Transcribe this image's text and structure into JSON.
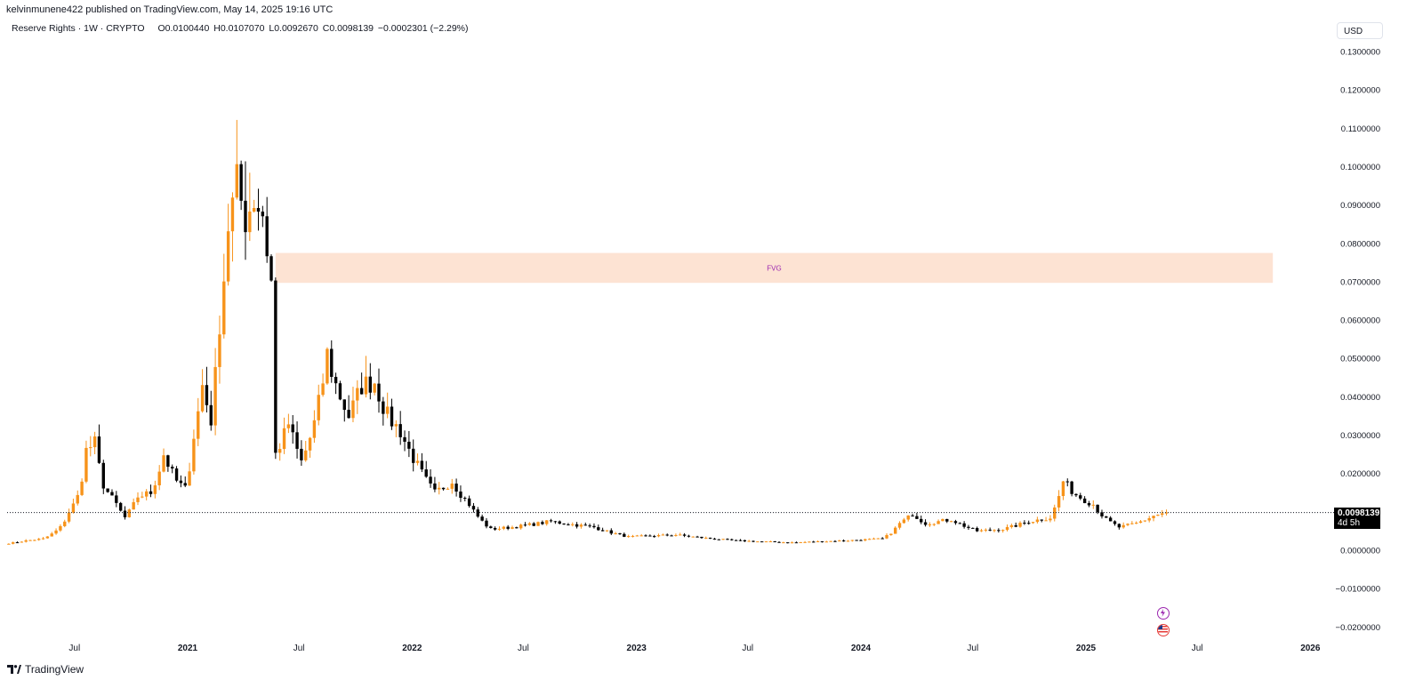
{
  "header": {
    "published": "kelvinmunene422 published on TradingView.com, May 14, 2025 19:16 UTC"
  },
  "legend": {
    "symbol": "Reserve Rights · 1W · CRYPTO",
    "open": "O0.0100440",
    "high": "H0.0107070",
    "low": "L0.0092670",
    "close": "C0.0098139",
    "change": "−0.0002301 (−2.29%)"
  },
  "currency_button": "USD",
  "last_price": {
    "value": "0.0098139",
    "countdown": "4d 5h"
  },
  "brand": "TradingView",
  "event_icons": [
    "lightning-icon",
    "us-flag-icon"
  ],
  "colors": {
    "up": "#f7931a",
    "down": "#000000",
    "fvg_fill": "#fde3d3",
    "fvg_text": "#9c27b0"
  },
  "chart_data": {
    "type": "candlestick",
    "title": "Reserve Rights · 1W · CRYPTO",
    "y_axis": {
      "ticks": [
        "0.1300000",
        "0.1200000",
        "0.1100000",
        "0.1000000",
        "0.0900000",
        "0.0800000",
        "0.0700000",
        "0.0600000",
        "0.0500000",
        "0.0400000",
        "0.0300000",
        "0.0200000",
        "0.0100000",
        "0.0000000",
        "−0.0100000",
        "−0.0200000"
      ],
      "range": [
        -0.0215,
        0.1335
      ]
    },
    "x_axis": {
      "ticks": [
        {
          "label": "Jul",
          "date": "2020-07-01",
          "bold": false
        },
        {
          "label": "2021",
          "date": "2021-01-01",
          "bold": true
        },
        {
          "label": "Jul",
          "date": "2021-07-01",
          "bold": false
        },
        {
          "label": "2022",
          "date": "2022-01-01",
          "bold": true
        },
        {
          "label": "Jul",
          "date": "2022-07-01",
          "bold": false
        },
        {
          "label": "2023",
          "date": "2023-01-01",
          "bold": true
        },
        {
          "label": "Jul",
          "date": "2023-07-01",
          "bold": false
        },
        {
          "label": "2024",
          "date": "2024-01-01",
          "bold": true
        },
        {
          "label": "Jul",
          "date": "2024-07-01",
          "bold": false
        },
        {
          "label": "2025",
          "date": "2025-01-01",
          "bold": true
        },
        {
          "label": "Jul",
          "date": "2025-07-01",
          "bold": false
        },
        {
          "label": "2026",
          "date": "2026-01-01",
          "bold": true
        }
      ]
    },
    "fvg_zone": {
      "label": "FVG",
      "from": "2021-05-24",
      "to": "2025-11-01",
      "low": 0.0697,
      "high": 0.0775
    },
    "last_close": 0.0098139,
    "keypoints": [
      {
        "date": "2020-03-16",
        "close": 0.0018
      },
      {
        "date": "2020-04-13",
        "close": 0.0025
      },
      {
        "date": "2020-05-11",
        "close": 0.003
      },
      {
        "date": "2020-06-08",
        "close": 0.006
      },
      {
        "date": "2020-06-22",
        "close": 0.01
      },
      {
        "date": "2020-07-06",
        "close": 0.014
      },
      {
        "date": "2020-07-20",
        "close": 0.026
      },
      {
        "date": "2020-08-03",
        "close": 0.028
      },
      {
        "date": "2020-08-17",
        "close": 0.017
      },
      {
        "date": "2020-09-07",
        "close": 0.012
      },
      {
        "date": "2020-09-21",
        "close": 0.0085
      },
      {
        "date": "2020-10-12",
        "close": 0.014
      },
      {
        "date": "2020-11-02",
        "close": 0.015
      },
      {
        "date": "2020-11-23",
        "close": 0.025
      },
      {
        "date": "2020-12-14",
        "close": 0.018
      },
      {
        "date": "2020-12-28",
        "close": 0.016
      },
      {
        "date": "2021-01-11",
        "close": 0.03
      },
      {
        "date": "2021-01-25",
        "close": 0.043
      },
      {
        "date": "2021-02-08",
        "close": 0.034
      },
      {
        "date": "2021-02-22",
        "close": 0.06
      },
      {
        "date": "2021-03-08",
        "close": 0.085
      },
      {
        "date": "2021-03-22",
        "close": 0.095
      },
      {
        "date": "2021-04-05",
        "close": 0.087
      },
      {
        "date": "2021-04-19",
        "close": 0.092
      },
      {
        "date": "2021-05-03",
        "close": 0.088
      },
      {
        "date": "2021-05-17",
        "close": 0.07
      },
      {
        "date": "2021-05-24",
        "close": 0.025
      },
      {
        "date": "2021-06-14",
        "close": 0.033
      },
      {
        "date": "2021-07-05",
        "close": 0.023
      },
      {
        "date": "2021-07-26",
        "close": 0.033
      },
      {
        "date": "2021-08-16",
        "close": 0.051
      },
      {
        "date": "2021-08-30",
        "close": 0.043
      },
      {
        "date": "2021-09-20",
        "close": 0.035
      },
      {
        "date": "2021-10-11",
        "close": 0.043
      },
      {
        "date": "2021-11-01",
        "close": 0.044
      },
      {
        "date": "2021-11-22",
        "close": 0.035
      },
      {
        "date": "2021-12-13",
        "close": 0.031
      },
      {
        "date": "2022-01-10",
        "close": 0.022
      },
      {
        "date": "2022-02-07",
        "close": 0.015
      },
      {
        "date": "2022-03-07",
        "close": 0.018
      },
      {
        "date": "2022-04-04",
        "close": 0.012
      },
      {
        "date": "2022-05-09",
        "close": 0.0055
      },
      {
        "date": "2022-06-13",
        "close": 0.006
      },
      {
        "date": "2022-08-15",
        "close": 0.0075
      },
      {
        "date": "2022-10-24",
        "close": 0.006
      },
      {
        "date": "2022-12-19",
        "close": 0.0035
      },
      {
        "date": "2023-03-06",
        "close": 0.004
      },
      {
        "date": "2023-06-12",
        "close": 0.0025
      },
      {
        "date": "2023-09-11",
        "close": 0.002
      },
      {
        "date": "2023-12-04",
        "close": 0.0025
      },
      {
        "date": "2024-02-05",
        "close": 0.003
      },
      {
        "date": "2024-03-04",
        "close": 0.007
      },
      {
        "date": "2024-03-25",
        "close": 0.0095
      },
      {
        "date": "2024-04-15",
        "close": 0.007
      },
      {
        "date": "2024-05-27",
        "close": 0.008
      },
      {
        "date": "2024-07-08",
        "close": 0.005
      },
      {
        "date": "2024-08-19",
        "close": 0.0055
      },
      {
        "date": "2024-09-30",
        "close": 0.0075
      },
      {
        "date": "2024-11-04",
        "close": 0.0085
      },
      {
        "date": "2024-11-25",
        "close": 0.018
      },
      {
        "date": "2024-12-16",
        "close": 0.0145
      },
      {
        "date": "2025-01-13",
        "close": 0.012
      },
      {
        "date": "2025-02-03",
        "close": 0.008
      },
      {
        "date": "2025-02-24",
        "close": 0.006
      },
      {
        "date": "2025-03-24",
        "close": 0.007
      },
      {
        "date": "2025-04-21",
        "close": 0.009
      },
      {
        "date": "2025-05-12",
        "close": 0.0098
      }
    ]
  }
}
